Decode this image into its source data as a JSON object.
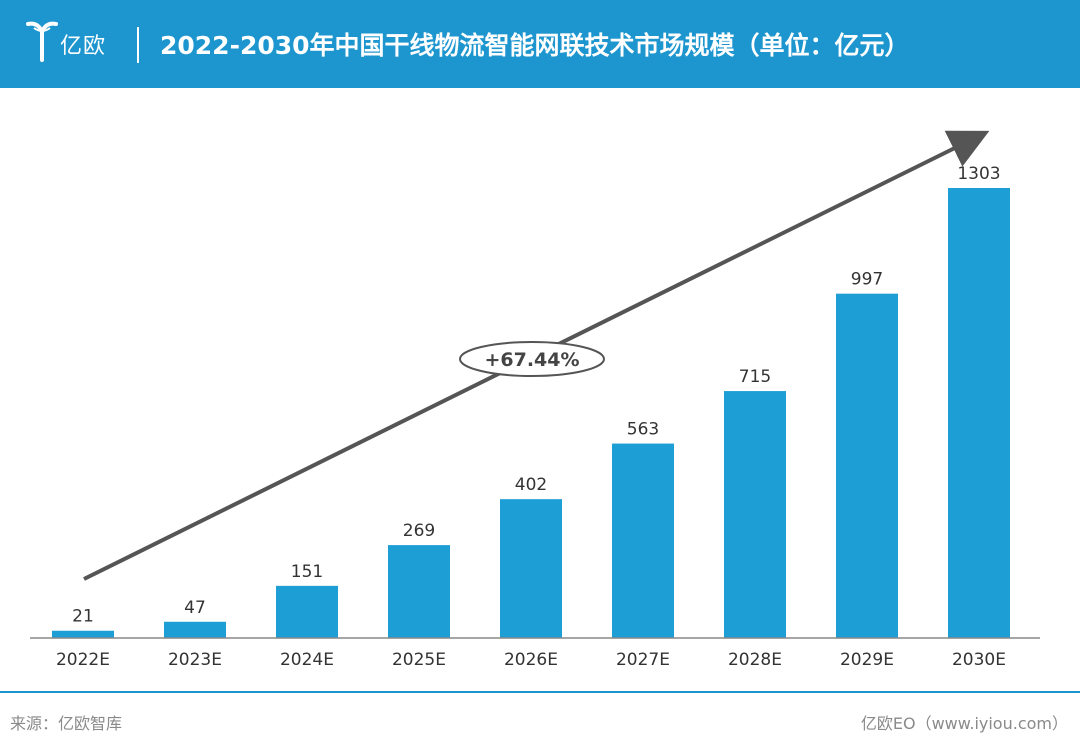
{
  "header": {
    "logo_text": "亿欧",
    "title": "2022-2030年中国干线物流智能网联技术市场规模（单位：亿元）"
  },
  "chart_data": {
    "type": "bar",
    "title": "2022-2030年中国干线物流智能网联技术市场规模（单位：亿元）",
    "categories": [
      "2022E",
      "2023E",
      "2024E",
      "2025E",
      "2026E",
      "2027E",
      "2028E",
      "2029E",
      "2030E"
    ],
    "values": [
      21,
      47,
      151,
      269,
      402,
      563,
      715,
      997,
      1303
    ],
    "ylabel": "",
    "xlabel": "",
    "ylim": [
      0,
      1303
    ],
    "growth_annotation": "+67.44%",
    "bar_color": "#1d9fd5",
    "grid": false,
    "legend": "none"
  },
  "footer": {
    "source": "来源：亿欧智库",
    "credit": "亿欧EO（www.iyiou.com）"
  },
  "colors": {
    "accent": "#1d96cf",
    "arrow": "#555555"
  }
}
